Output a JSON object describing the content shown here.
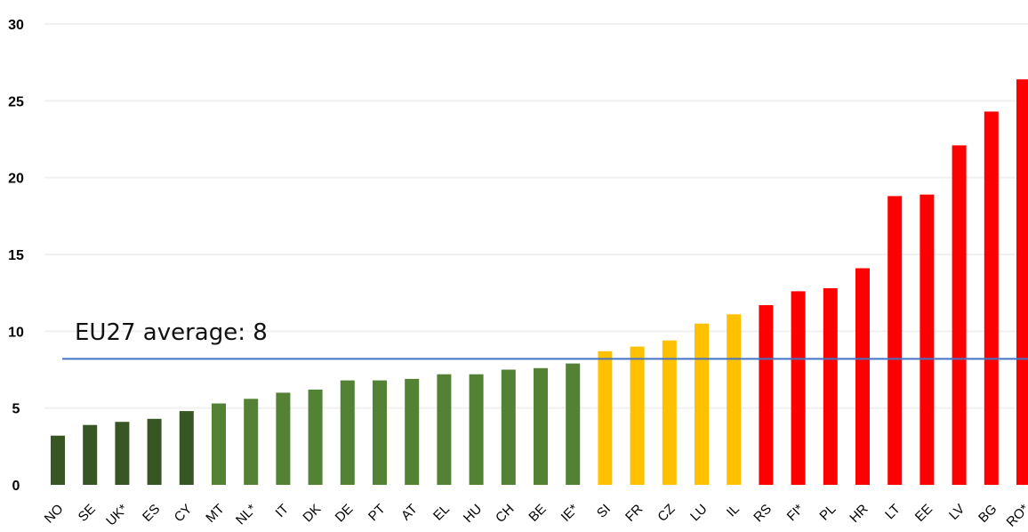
{
  "chart_data": {
    "type": "bar",
    "categories": [
      "NO",
      "SE",
      "UK*",
      "ES",
      "CY",
      "MT",
      "NL*",
      "IT",
      "DK",
      "DE",
      "PT",
      "AT",
      "EL",
      "HU",
      "CH",
      "BE",
      "IE*",
      "SI",
      "FR",
      "CZ",
      "LU",
      "IL",
      "RS",
      "FI*",
      "PL",
      "HR",
      "LT",
      "EE",
      "LV",
      "BG",
      "RO*"
    ],
    "values": [
      3.2,
      3.9,
      4.1,
      4.3,
      4.8,
      5.3,
      5.6,
      6.0,
      6.2,
      6.8,
      6.8,
      6.9,
      7.2,
      7.2,
      7.5,
      7.6,
      7.9,
      8.7,
      9.0,
      9.4,
      10.5,
      11.1,
      11.7,
      12.6,
      12.8,
      14.1,
      18.8,
      18.9,
      22.1,
      24.3,
      26.4
    ],
    "colors": [
      "#375623",
      "#375623",
      "#375623",
      "#375623",
      "#375623",
      "#548235",
      "#548235",
      "#548235",
      "#548235",
      "#548235",
      "#548235",
      "#548235",
      "#548235",
      "#548235",
      "#548235",
      "#548235",
      "#548235",
      "#ffc000",
      "#ffc000",
      "#ffc000",
      "#ffc000",
      "#ffc000",
      "#ff0000",
      "#ff0000",
      "#ff0000",
      "#ff0000",
      "#ff0000",
      "#ff0000",
      "#ff0000",
      "#ff0000",
      "#ff0000"
    ],
    "yticks": [
      "0",
      "5",
      "10",
      "15",
      "20",
      "25",
      "30"
    ],
    "ylim": [
      0,
      30
    ],
    "grid": true,
    "average": {
      "label": "EU27 average: 8",
      "value": 8.2,
      "color": "#4472c4"
    },
    "title": "",
    "xlabel": "",
    "ylabel": ""
  }
}
